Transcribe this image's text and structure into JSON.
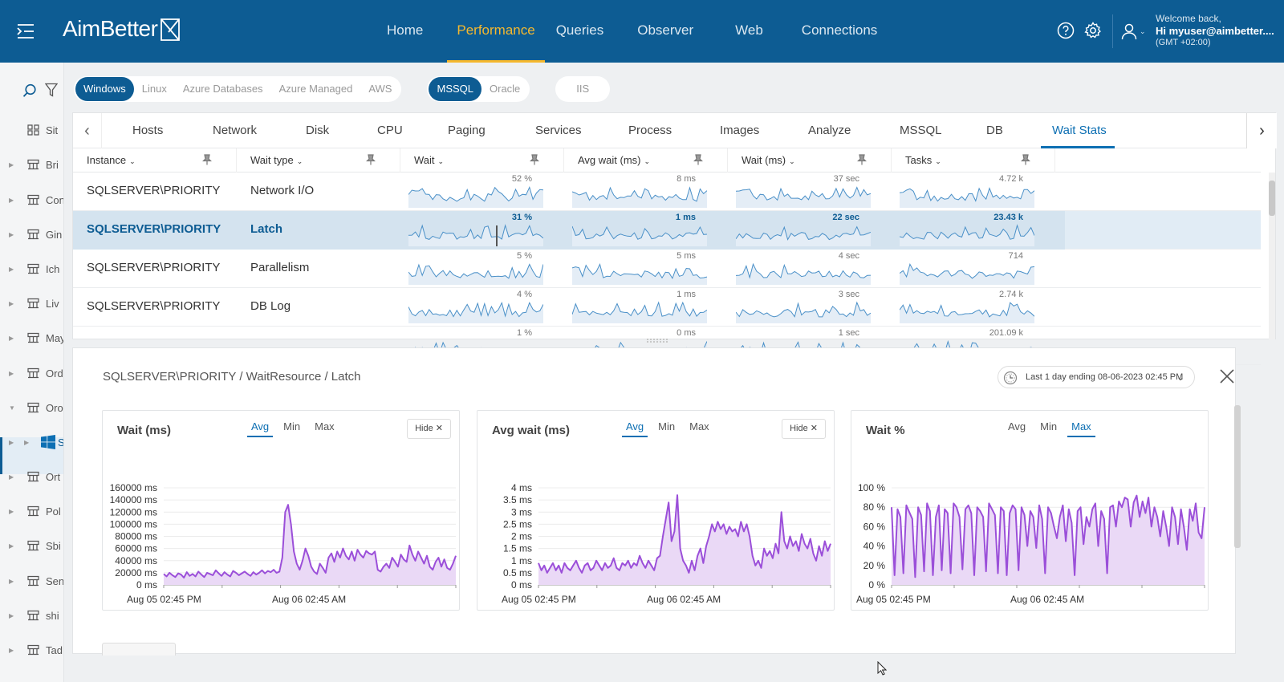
{
  "header": {
    "logo": "AimBetter",
    "nav": [
      "Home",
      "Performance",
      "Queries",
      "Observer",
      "Web",
      "Connections"
    ],
    "active_nav": "Performance",
    "welcome": "Welcome back,",
    "user": "Hi myuser@aimbetter....",
    "tz": "(GMT +02:00)"
  },
  "sidebar": {
    "items": [
      {
        "label": "Sit"
      },
      {
        "label": "Bri"
      },
      {
        "label": "Con"
      },
      {
        "label": "Gin"
      },
      {
        "label": "Ich"
      },
      {
        "label": "Liv"
      },
      {
        "label": "May"
      },
      {
        "label": "Ord"
      },
      {
        "label": "Oro"
      },
      {
        "label": "S"
      },
      {
        "label": "Ort"
      },
      {
        "label": "Pol"
      },
      {
        "label": "Sbi"
      },
      {
        "label": "Sen"
      },
      {
        "label": "shi"
      },
      {
        "label": "Tad"
      }
    ]
  },
  "filters": {
    "os": [
      "Windows",
      "Linux",
      "Azure Databases",
      "Azure Managed",
      "AWS"
    ],
    "db": [
      "MSSQL",
      "Oracle"
    ],
    "web": [
      "IIS"
    ]
  },
  "tabs": [
    "Hosts",
    "Network",
    "Disk",
    "CPU",
    "Paging",
    "Services",
    "Process",
    "Images",
    "Analyze",
    "MSSQL",
    "DB",
    "Wait Stats"
  ],
  "active_tab": "Wait Stats",
  "columns": [
    "Instance",
    "Wait type",
    "Wait",
    "Avg wait (ms)",
    "Wait (ms)",
    "Tasks"
  ],
  "rows": [
    {
      "instance": "SQLSERVER\\PRIORITY",
      "wait_type": "Network I/O",
      "wait": "52 %",
      "avg": "8 ms",
      "wait_ms": "37 sec",
      "tasks": "4.72 k",
      "selected": false
    },
    {
      "instance": "SQLSERVER\\PRIORITY",
      "wait_type": "Latch",
      "wait": "31 %",
      "avg": "1 ms",
      "wait_ms": "22 sec",
      "tasks": "23.43 k",
      "selected": true
    },
    {
      "instance": "SQLSERVER\\PRIORITY",
      "wait_type": "Parallelism",
      "wait": "5 %",
      "avg": "5 ms",
      "wait_ms": "4 sec",
      "tasks": "714",
      "selected": false
    },
    {
      "instance": "SQLSERVER\\PRIORITY",
      "wait_type": "DB Log",
      "wait": "4 %",
      "avg": "1 ms",
      "wait_ms": "3 sec",
      "tasks": "2.74 k",
      "selected": false
    },
    {
      "instance": "",
      "wait_type": "",
      "wait": "1 %",
      "avg": "0 ms",
      "wait_ms": "1 sec",
      "tasks": "201.09 k",
      "selected": false
    }
  ],
  "detail": {
    "breadcrumb": "SQLSERVER\\PRIORITY / WaitResource / Latch",
    "time_range": "Last 1 day ending  08-06-2023 02:45 PM"
  },
  "chart_data": [
    {
      "type": "area",
      "title": "Wait (ms)",
      "stat_tabs": [
        "Avg",
        "Min",
        "Max"
      ],
      "active_stat": "Avg",
      "hide_label": "Hide",
      "yticks": [
        "160000 ms",
        "140000 ms",
        "120000 ms",
        "100000 ms",
        "80000 ms",
        "60000 ms",
        "40000 ms",
        "20000 ms",
        "0 ms"
      ],
      "ylim": [
        0,
        160000
      ],
      "xticks": [
        "Aug 05 02:45 PM",
        "Aug 06 02:45 AM"
      ],
      "values": [
        18000,
        14000,
        20000,
        16000,
        13000,
        19000,
        17000,
        12000,
        21000,
        15000,
        18000,
        14000,
        22000,
        17000,
        13000,
        20000,
        18000,
        16000,
        24000,
        19000,
        15000,
        21000,
        17000,
        14000,
        23000,
        20000,
        16000,
        19000,
        22000,
        18000,
        15000,
        21000,
        17000,
        20000,
        24000,
        19000,
        23000,
        21000,
        25000,
        20000,
        22000,
        45000,
        120000,
        132000,
        100000,
        55000,
        35000,
        25000,
        40000,
        60000,
        48000,
        30000,
        22000,
        18000,
        35000,
        28000,
        20000,
        45000,
        52000,
        38000,
        55000,
        45000,
        60000,
        48000,
        42000,
        55000,
        40000,
        58000,
        50000,
        45000,
        56000,
        52000,
        50000,
        55000,
        25000,
        22000,
        30000,
        35000,
        28000,
        45000,
        38000,
        30000,
        50000,
        42000,
        38000,
        65000,
        50000,
        40000,
        55000,
        45000,
        35000,
        48000,
        30000,
        25000,
        38000,
        45000,
        30000,
        42000,
        28000,
        25000,
        35000,
        48000
      ]
    },
    {
      "type": "area",
      "title": "Avg wait (ms)",
      "stat_tabs": [
        "Avg",
        "Min",
        "Max"
      ],
      "active_stat": "Avg",
      "hide_label": "Hide",
      "yticks": [
        "4 ms",
        "3.5 ms",
        "3 ms",
        "2.5 ms",
        "2 ms",
        "1.5 ms",
        "1 ms",
        "0.5 ms",
        "0 ms"
      ],
      "ylim": [
        0,
        4
      ],
      "xticks": [
        "Aug 05 02:45 PM",
        "Aug 06 02:45 AM"
      ],
      "values": [
        0.9,
        0.6,
        0.8,
        0.5,
        0.7,
        0.9,
        0.6,
        0.8,
        0.5,
        0.9,
        0.7,
        0.6,
        0.8,
        1.0,
        0.7,
        0.5,
        0.8,
        0.9,
        0.6,
        0.7,
        1.0,
        0.8,
        0.6,
        0.9,
        0.7,
        0.8,
        1.1,
        0.7,
        0.6,
        0.9,
        0.8,
        1.0,
        0.7,
        0.9,
        0.8,
        1.2,
        0.9,
        0.7,
        1.0,
        0.8,
        0.6,
        1.1,
        1.2,
        2.0,
        2.7,
        3.4,
        1.8,
        2.2,
        3.7,
        1.5,
        1.0,
        0.8,
        0.5,
        1.0,
        0.6,
        1.2,
        1.5,
        0.9,
        1.6,
        2.0,
        2.5,
        2.2,
        2.6,
        2.3,
        2.5,
        2.1,
        2.4,
        2.2,
        2.3,
        2.0,
        2.6,
        2.2,
        2.5,
        2.0,
        1.2,
        0.8,
        1.0,
        0.7,
        1.5,
        1.2,
        1.4,
        1.1,
        1.7,
        1.3,
        3.0,
        1.8,
        1.5,
        2.0,
        1.6,
        1.8,
        1.4,
        2.1,
        1.7,
        1.5,
        1.9,
        1.3,
        1.0,
        1.6,
        1.2,
        1.8,
        1.4,
        1.7
      ]
    },
    {
      "type": "area",
      "title": "Wait %",
      "stat_tabs": [
        "Avg",
        "Min",
        "Max"
      ],
      "active_stat": "Max",
      "yticks": [
        "100 %",
        "80 %",
        "60 %",
        "40 %",
        "20 %",
        "0 %"
      ],
      "ylim": [
        0,
        100
      ],
      "xticks": [
        "Aug 05 02:45 PM",
        "Aug 06 02:45 AM"
      ],
      "values": [
        80,
        10,
        78,
        70,
        12,
        82,
        75,
        68,
        8,
        80,
        72,
        14,
        84,
        76,
        10,
        70,
        82,
        15,
        78,
        74,
        12,
        84,
        80,
        70,
        16,
        78,
        82,
        74,
        10,
        80,
        76,
        70,
        14,
        84,
        78,
        72,
        12,
        80,
        76,
        10,
        74,
        82,
        78,
        15,
        80,
        72,
        40,
        76,
        70,
        38,
        82,
        68,
        12,
        80,
        74,
        60,
        48,
        70,
        82,
        45,
        78,
        64,
        10,
        76,
        80,
        42,
        70,
        60,
        78,
        84,
        40,
        76,
        68,
        12,
        80,
        82,
        60,
        86,
        80,
        90,
        88,
        60,
        85,
        92,
        70,
        86,
        74,
        90,
        60,
        80,
        70,
        50,
        76,
        60,
        40,
        80,
        70,
        42,
        78,
        60,
        36,
        78,
        66,
        84,
        54,
        48,
        80
      ]
    }
  ]
}
